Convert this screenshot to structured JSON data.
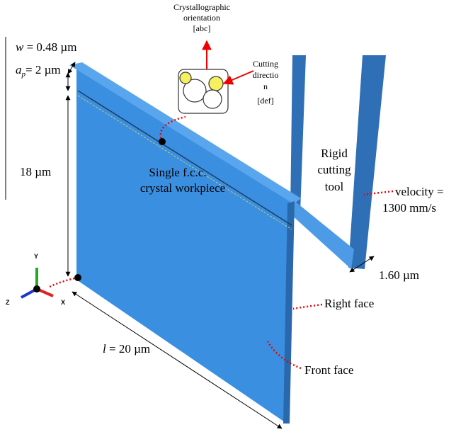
{
  "crystal": {
    "orientation": [
      "Crystallographic",
      "orientation",
      "[abc]"
    ],
    "cutting_direction": [
      "Cutting",
      "directio",
      "n",
      "[def]"
    ]
  },
  "dimensions": {
    "width": {
      "symbol": "w",
      "text": "= 0.48 µm"
    },
    "depth": {
      "symbol": "a",
      "subscript": "p",
      "text": "= 2 µm"
    },
    "height": "18 µm",
    "length": {
      "symbol": "l",
      "text": "= 20 µm"
    },
    "tool_width": "1.60 µm"
  },
  "labels": {
    "workpiece": [
      "Single f.c.c.",
      "crystal workpiece"
    ],
    "tool": [
      "Rigid",
      "cutting",
      "tool"
    ],
    "velocity": [
      "velocity =",
      "1300 mm/s"
    ],
    "right_face": "Right face",
    "front_face": "Front face"
  },
  "axes": {
    "y": "Y",
    "z": "Z",
    "x": "X"
  }
}
